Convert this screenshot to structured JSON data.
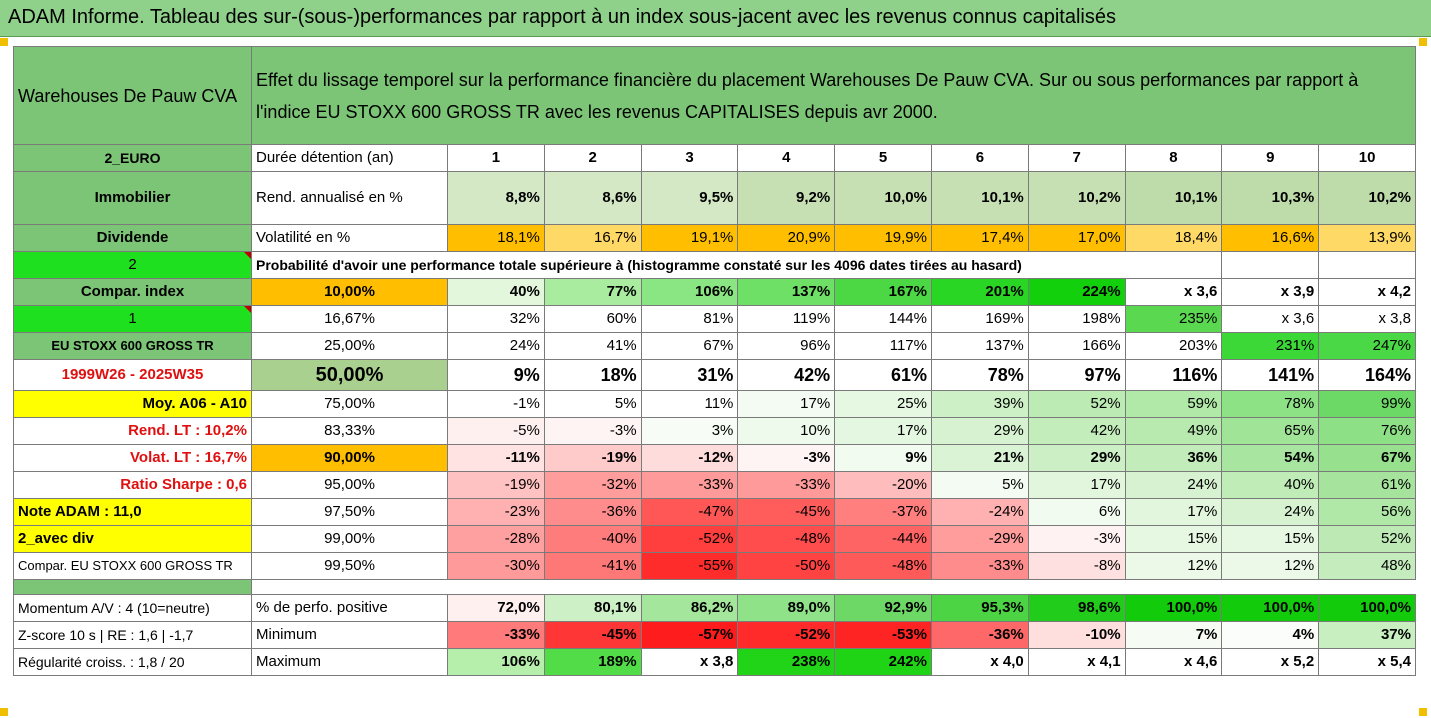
{
  "title": "ADAM Informe. Tableau des sur-(sous-)performances par rapport à un index sous-jacent avec les revenus connus capitalisés",
  "header": {
    "asset": "Warehouses De Pauw CVA",
    "description": "Effet du lissage temporel sur la performance financière du placement Warehouses De Pauw CVA. Sur ou sous performances par rapport à l'indice EU STOXX 600 GROSS TR avec les revenus CAPITALISES depuis avr 2000."
  },
  "rows_top": [
    {
      "label": "2_EURO",
      "name": "Durée détention (an)",
      "cells": [
        "1",
        "2",
        "3",
        "4",
        "5",
        "6",
        "7",
        "8",
        "9",
        "10"
      ]
    },
    {
      "label": "Immobilier",
      "name": "Rend. annualisé en %",
      "cells": [
        "8,8%",
        "8,6%",
        "9,5%",
        "9,2%",
        "10,0%",
        "10,1%",
        "10,2%",
        "10,1%",
        "10,3%",
        "10,2%"
      ]
    },
    {
      "label": "Dividende",
      "name": "Volatilité en %",
      "cells": [
        "18,1%",
        "16,7%",
        "19,1%",
        "20,9%",
        "19,9%",
        "17,4%",
        "17,0%",
        "18,4%",
        "16,6%",
        "13,9%"
      ]
    }
  ],
  "prob_row": {
    "label": "2",
    "text": "Probabilité d'avoir une performance totale supérieure à (histogramme constaté sur les 4096 dates tirées au hasard)"
  },
  "side_labels": {
    "compar_index": "Compar. index",
    "one": "1",
    "index_name": "EU STOXX 600 GROSS TR",
    "period": "1999W26 - 2025W35",
    "moy": "Moy. A06 - A10",
    "rend_lt": "Rend. LT :   10,2%",
    "volat_lt": "Volat. LT :   16,7%",
    "sharpe": "Ratio Sharpe :    0,6",
    "note": "Note ADAM : 11,0",
    "avec_div": "2_avec div",
    "compar_full": "Compar. EU STOXX 600 GROSS TR"
  },
  "prob_table": [
    {
      "q": "10,00%",
      "cells": [
        "40%",
        "77%",
        "106%",
        "137%",
        "167%",
        "201%",
        "224%",
        "x 3,6",
        "x 3,9",
        "x 4,2"
      ]
    },
    {
      "q": "16,67%",
      "cells": [
        "32%",
        "60%",
        "81%",
        "119%",
        "144%",
        "169%",
        "198%",
        "235%",
        "x 3,6",
        "x 3,8"
      ]
    },
    {
      "q": "25,00%",
      "cells": [
        "24%",
        "41%",
        "67%",
        "96%",
        "117%",
        "137%",
        "166%",
        "203%",
        "231%",
        "247%"
      ]
    },
    {
      "q": "50,00%",
      "cells": [
        "9%",
        "18%",
        "31%",
        "42%",
        "61%",
        "78%",
        "97%",
        "116%",
        "141%",
        "164%"
      ]
    },
    {
      "q": "75,00%",
      "cells": [
        "-1%",
        "5%",
        "11%",
        "17%",
        "25%",
        "39%",
        "52%",
        "59%",
        "78%",
        "99%"
      ]
    },
    {
      "q": "83,33%",
      "cells": [
        "-5%",
        "-3%",
        "3%",
        "10%",
        "17%",
        "29%",
        "42%",
        "49%",
        "65%",
        "76%"
      ]
    },
    {
      "q": "90,00%",
      "cells": [
        "-11%",
        "-19%",
        "-12%",
        "-3%",
        "9%",
        "21%",
        "29%",
        "36%",
        "54%",
        "67%"
      ]
    },
    {
      "q": "95,00%",
      "cells": [
        "-19%",
        "-32%",
        "-33%",
        "-33%",
        "-20%",
        "5%",
        "17%",
        "24%",
        "40%",
        "61%"
      ]
    },
    {
      "q": "97,50%",
      "cells": [
        "-23%",
        "-36%",
        "-47%",
        "-45%",
        "-37%",
        "-24%",
        "6%",
        "17%",
        "24%",
        "56%"
      ]
    },
    {
      "q": "99,00%",
      "cells": [
        "-28%",
        "-40%",
        "-52%",
        "-48%",
        "-44%",
        "-29%",
        "-3%",
        "15%",
        "15%",
        "52%"
      ]
    },
    {
      "q": "99,50%",
      "cells": [
        "-30%",
        "-41%",
        "-55%",
        "-50%",
        "-48%",
        "-33%",
        "-8%",
        "12%",
        "12%",
        "48%"
      ]
    }
  ],
  "bottom": [
    {
      "label": "Momentum A/V : 4 (10=neutre)",
      "name": "% de perfo. positive",
      "cells": [
        "72,0%",
        "80,1%",
        "86,2%",
        "89,0%",
        "92,9%",
        "95,3%",
        "98,6%",
        "100,0%",
        "100,0%",
        "100,0%"
      ]
    },
    {
      "label": "Z-score 10 s  |  RE : 1,6  |  -1,7",
      "name": "Minimum",
      "cells": [
        "-33%",
        "-45%",
        "-57%",
        "-52%",
        "-53%",
        "-36%",
        "-10%",
        "7%",
        "4%",
        "37%"
      ]
    },
    {
      "label": "Régularité croiss. : 1,8 / 20",
      "name": "Maximum",
      "cells": [
        "106%",
        "189%",
        "x 3,8",
        "238%",
        "242%",
        "x 4,0",
        "x 4,1",
        "x 4,6",
        "x 5,2",
        "x 5,4"
      ]
    }
  ],
  "colors": {
    "prob": [
      [
        "#e2f7dc",
        "#a9eca0",
        "#8ae682",
        "#6ee066",
        "#4cd744",
        "#2ad624",
        "#12d00c",
        "#ffffff",
        "#ffffff",
        "#ffffff"
      ],
      [
        "#ffffff",
        "#ffffff",
        "#ffffff",
        "#ffffff",
        "#ffffff",
        "#ffffff",
        "#ffffff",
        "#5ad850",
        "#ffffff",
        "#ffffff"
      ],
      [
        "#ffffff",
        "#ffffff",
        "#ffffff",
        "#ffffff",
        "#ffffff",
        "#ffffff",
        "#ffffff",
        "#ffffff",
        "#3cd838",
        "#4bd846"
      ],
      [
        "#ffffff",
        "#ffffff",
        "#ffffff",
        "#ffffff",
        "#ffffff",
        "#ffffff",
        "#ffffff",
        "#ffffff",
        "#ffffff",
        "#ffffff"
      ],
      [
        "#ffffff",
        "#ffffff",
        "#ffffff",
        "#f4fbf2",
        "#e6f7e2",
        "#cdf0c6",
        "#bcebb4",
        "#b0e9a8",
        "#8ee286",
        "#6cd866"
      ],
      [
        "#fff0f0",
        "#fff4f4",
        "#f7fcf6",
        "#eefaeb",
        "#e4f7e0",
        "#d6f2d0",
        "#c4edbc",
        "#b8eab0",
        "#a0e498",
        "#8ee086"
      ],
      [
        "#ffe2e2",
        "#ffcaca",
        "#ffdcdc",
        "#fff4f4",
        "#f2fbef",
        "#daf3d4",
        "#cdefc6",
        "#c2ecba",
        "#a8e5a0",
        "#96e08e"
      ],
      [
        "#ffc2c2",
        "#ff9c9c",
        "#ff9a9a",
        "#ff9a9a",
        "#ffbcbc",
        "#f4fbf2",
        "#e2f6dd",
        "#d6f2d0",
        "#c0ecb8",
        "#a6e49e"
      ],
      [
        "#ffb0b0",
        "#ff8c8c",
        "#ff5656",
        "#ff5c5c",
        "#ff7e7e",
        "#ffb0b0",
        "#f2fbef",
        "#e2f6dd",
        "#d6f2d0",
        "#b0e8a8"
      ],
      [
        "#ffa0a0",
        "#ff7c7c",
        "#ff3e3e",
        "#ff4c4c",
        "#ff6464",
        "#ff9c9c",
        "#fff2f2",
        "#e6f7e2",
        "#e6f7e2",
        "#bce9b4"
      ],
      [
        "#ff9a9a",
        "#ff7878",
        "#ff2c2c",
        "#ff4242",
        "#ff5a5a",
        "#ff8c8c",
        "#ffe0e0",
        "#ecf9e8",
        "#ecf9e8",
        "#c4ecbc"
      ]
    ],
    "bottom": [
      [
        "#fff0f0",
        "#cdf0c6",
        "#a4e69c",
        "#90e288",
        "#6ed866",
        "#4cd444",
        "#22cc1a",
        "#12cc0c",
        "#12cc0c",
        "#12cc0c"
      ],
      [
        "#ff7a7a",
        "#ff3636",
        "#ff1c1c",
        "#ff2a2a",
        "#ff2424",
        "#ff6868",
        "#ffdede",
        "#f6fcf4",
        "#fafdf9",
        "#c8efc0"
      ],
      [
        "#b6eeac",
        "#52dc48",
        "#ffffff",
        "#22d418",
        "#1ed414",
        "#ffffff",
        "#ffffff",
        "#ffffff",
        "#ffffff",
        "#ffffff"
      ]
    ]
  }
}
